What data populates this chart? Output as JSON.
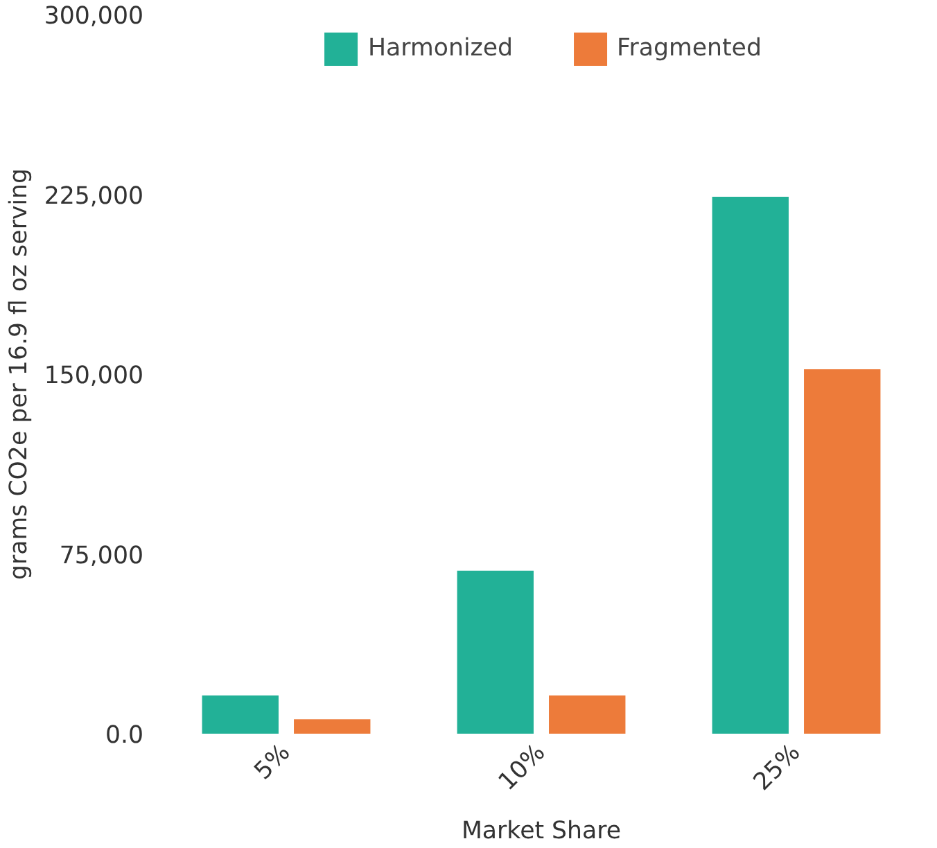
{
  "chart_data": {
    "type": "bar",
    "xlabel": "Market Share",
    "ylabel": "grams CO2e per 16.9 fl oz serving",
    "categories": [
      "5%",
      "10%",
      "25%"
    ],
    "series": [
      {
        "name": "Harmonized",
        "color": "#22b197",
        "values": [
          16000,
          68000,
          224000
        ]
      },
      {
        "name": "Fragmented",
        "color": "#ed7b3a",
        "values": [
          6000,
          16000,
          152000
        ]
      }
    ],
    "ylim": [
      0,
      300000
    ],
    "yticks": [
      {
        "value": 0,
        "label": "0.0"
      },
      {
        "value": 75000,
        "label": "75,000"
      },
      {
        "value": 150000,
        "label": "150,000"
      },
      {
        "value": 225000,
        "label": "225,000"
      },
      {
        "value": 300000,
        "label": "300,000"
      }
    ],
    "grid": false,
    "legend": "top"
  }
}
